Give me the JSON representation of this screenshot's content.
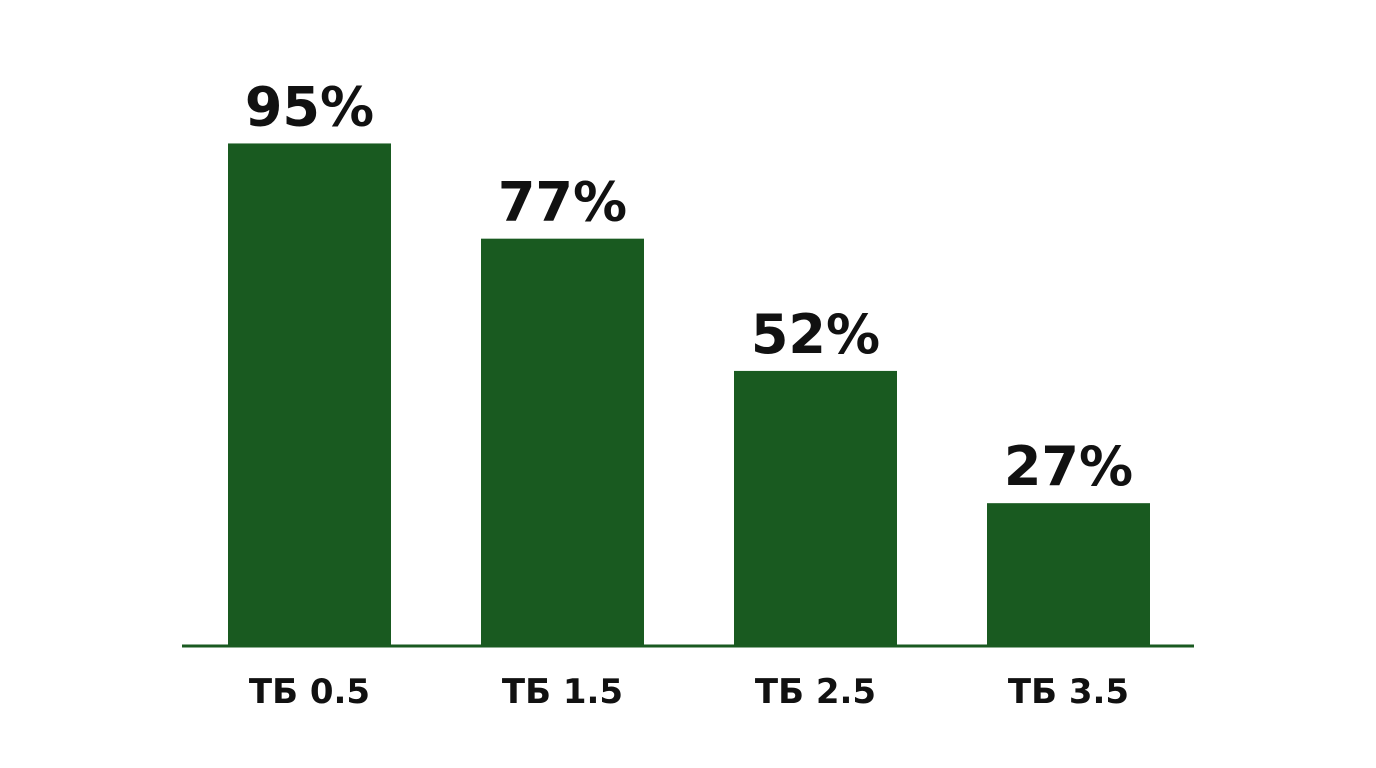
{
  "chart_data": {
    "type": "bar",
    "categories": [
      "ТБ 0.5",
      "ТБ 1.5",
      "ТБ 2.5",
      "ТБ 3.5"
    ],
    "values": [
      95,
      77,
      52,
      27
    ],
    "value_labels": [
      "95%",
      "77%",
      "52%",
      "27%"
    ],
    "color": "#195a20",
    "ylim": [
      0,
      100
    ]
  }
}
